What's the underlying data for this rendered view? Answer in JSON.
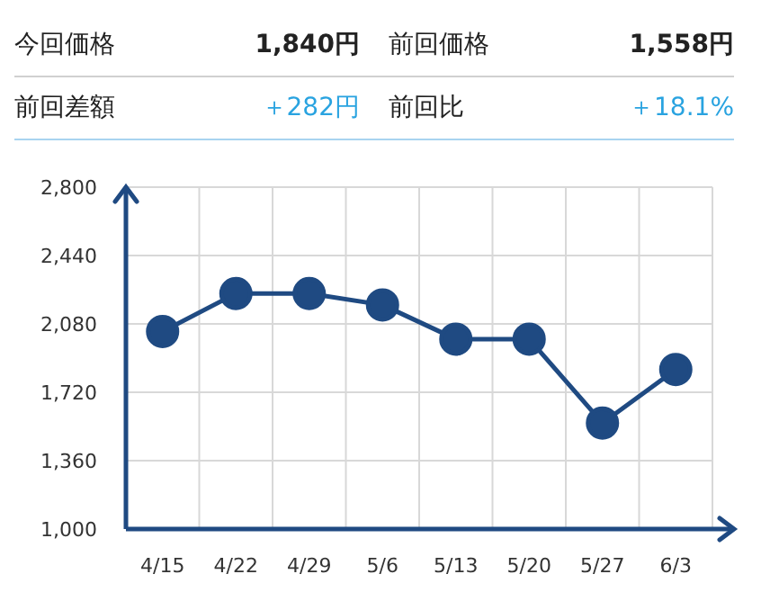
{
  "chart_data": {
    "type": "line",
    "annotations": [
      "今回価格",
      "1,840円",
      "前回価格",
      "1,558円",
      "前回差額",
      "＋282円",
      "前回比",
      "＋18.1%"
    ],
    "categories": [
      "4/15",
      "4/22",
      "4/29",
      "5/6",
      "5/13",
      "5/20",
      "5/27",
      "6/3"
    ],
    "series": [
      {
        "color": "#1f4a82",
        "values": [
          2040,
          2240,
          2240,
          2180,
          2000,
          2000,
          1558,
          1840
        ]
      }
    ],
    "ylim": [
      1000,
      2800
    ],
    "yticks": [
      {
        "value": 1000,
        "label": "1,000"
      },
      {
        "value": 1360,
        "label": "1,360"
      },
      {
        "value": 1720,
        "label": "1,720"
      },
      {
        "value": 2080,
        "label": "2,080"
      },
      {
        "value": 2440,
        "label": "2,440"
      },
      {
        "value": 2800,
        "label": "2,800"
      }
    ],
    "grid": true,
    "marker": "circle",
    "line_style": "solid"
  }
}
